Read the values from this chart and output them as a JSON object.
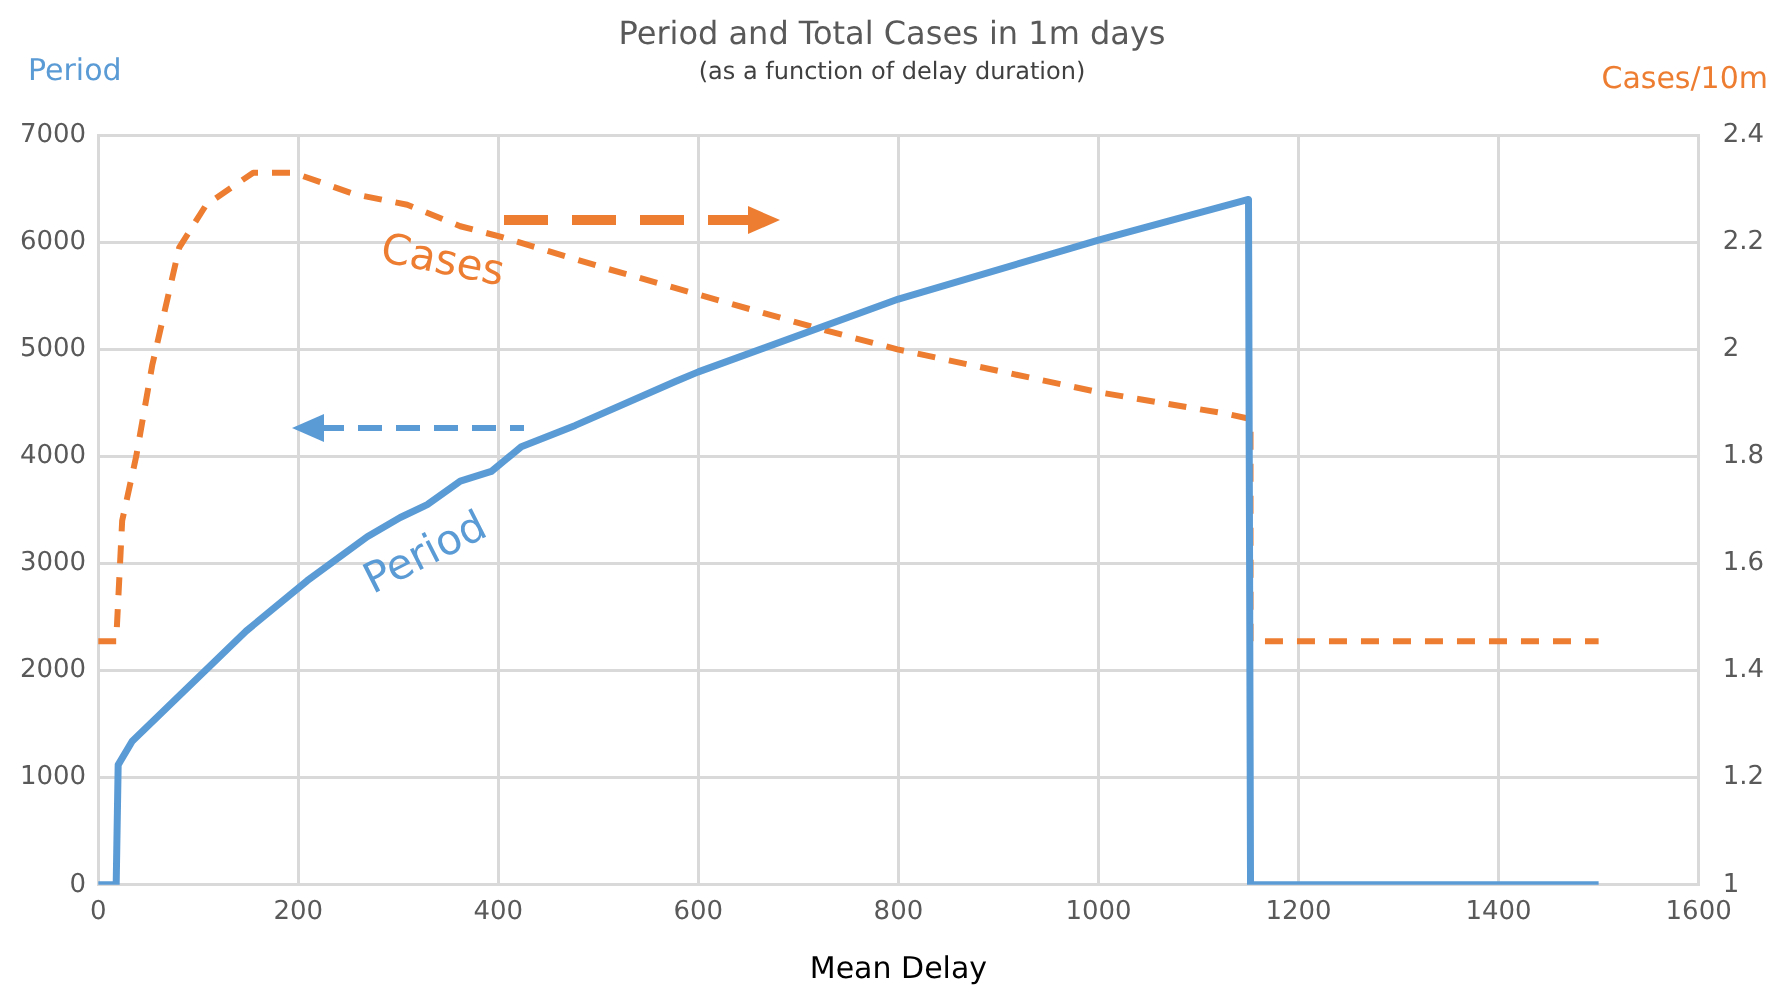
{
  "chart_data": {
    "type": "line",
    "title": "Period and Total Cases in 1m days",
    "subtitle": "(as a function of delay duration)",
    "xlabel": "Mean Delay",
    "ylabel": "Period",
    "y2label": "Cases/10m",
    "series": [
      {
        "name": "Period",
        "color": "#5b9bd5",
        "line_style": "solid",
        "x": [
          0,
          18,
          20,
          34,
          148,
          209,
          269,
          302,
          329,
          362,
          393,
          423,
          477,
          577,
          600,
          800,
          1000,
          1150,
          1152,
          1500
        ],
        "values": [
          0,
          0,
          1120,
          1340,
          2370,
          2840,
          3250,
          3430,
          3550,
          3770,
          3860,
          4090,
          4290,
          4700,
          4790,
          5470,
          6020,
          6400,
          0,
          0
        ]
      },
      {
        "name": "Cases",
        "color": "#ed7d31",
        "axis": "y2",
        "line_style": "dashed",
        "x": [
          0,
          18,
          24,
          38,
          54,
          81,
          108,
          155,
          195,
          256,
          309,
          362,
          403,
          510,
          718,
          799,
          1000,
          1127,
          1152,
          1152,
          1500
        ],
        "values": [
          1.455,
          1.455,
          1.68,
          1.8,
          1.97,
          2.19,
          2.27,
          2.33,
          2.33,
          2.29,
          2.27,
          2.23,
          2.21,
          2.15,
          2.04,
          2.0,
          1.92,
          1.88,
          1.87,
          1.455,
          1.455
        ]
      }
    ],
    "xlim": [
      0,
      1600
    ],
    "xticks": [
      0,
      200,
      400,
      600,
      800,
      1000,
      1200,
      1400,
      1600
    ],
    "ylim": [
      0,
      7000
    ],
    "yticks": [
      0,
      1000,
      2000,
      3000,
      4000,
      5000,
      6000,
      7000
    ],
    "y2lim": [
      1,
      2.4
    ],
    "y2ticks": [
      1,
      1.2,
      1.4,
      1.6,
      1.8,
      2,
      2.2,
      2.4
    ],
    "grid": true,
    "legend": false,
    "marker": "none"
  }
}
